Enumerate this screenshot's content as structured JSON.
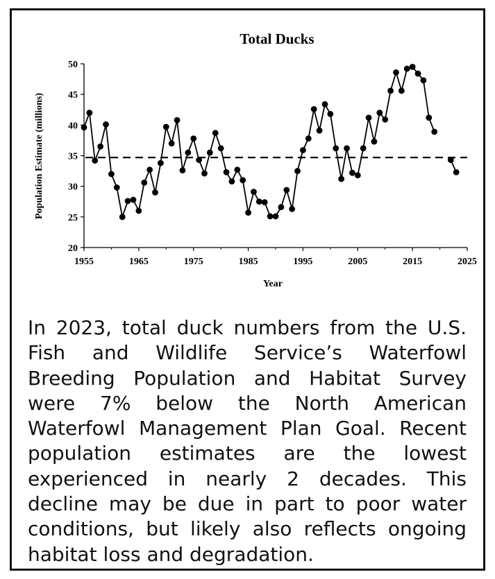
{
  "chart_data": {
    "type": "line",
    "title": "Total Ducks",
    "xlabel": "Year",
    "ylabel": "Population Estimate (millions)",
    "xlim": [
      1955,
      2025
    ],
    "ylim": [
      20,
      50
    ],
    "xticks": [
      1955,
      1965,
      1975,
      1985,
      1995,
      2005,
      2015,
      2025
    ],
    "yticks": [
      20,
      25,
      30,
      35,
      40,
      45,
      50
    ],
    "grid": false,
    "series": [
      {
        "x": [
          1955,
          1956,
          1957,
          1958,
          1959,
          1960,
          1961,
          1962,
          1963,
          1964,
          1965,
          1966,
          1967,
          1968,
          1969,
          1970,
          1971,
          1972,
          1973,
          1974,
          1975,
          1976,
          1977,
          1978,
          1979,
          1980,
          1981,
          1982,
          1983,
          1984,
          1985,
          1986,
          1987,
          1988,
          1989,
          1990,
          1991,
          1992,
          1993,
          1994,
          1995,
          1996,
          1997,
          1998,
          1999,
          2000,
          2001,
          2002,
          2003,
          2004,
          2005,
          2006,
          2007,
          2008,
          2009,
          2010,
          2011,
          2012,
          2013,
          2014,
          2015,
          2016,
          2017,
          2018,
          2019,
          2022,
          2023
        ],
        "y": [
          39.6,
          42.0,
          34.2,
          36.5,
          40.1,
          32.0,
          29.8,
          25.0,
          27.6,
          27.8,
          26.0,
          30.6,
          32.7,
          29.0,
          33.8,
          39.7,
          37.0,
          40.8,
          32.6,
          35.5,
          37.8,
          34.3,
          32.1,
          35.5,
          38.7,
          36.2,
          32.3,
          30.8,
          32.7,
          31.0,
          25.7,
          29.1,
          27.5,
          27.4,
          25.1,
          25.1,
          26.6,
          29.4,
          26.3,
          32.5,
          35.9,
          37.8,
          42.6,
          39.1,
          43.4,
          41.8,
          36.2,
          31.2,
          36.2,
          32.2,
          31.8,
          36.2,
          41.2,
          37.3,
          42.0,
          40.9,
          45.6,
          48.6,
          45.6,
          49.2,
          49.5,
          48.4,
          47.3,
          41.2,
          38.9,
          34.3,
          32.3
        ],
        "segments": [
          [
            1955,
            2019
          ],
          [
            2022,
            2023
          ]
        ]
      }
    ],
    "reference_line": {
      "y": 34.7,
      "style": "dashed"
    }
  },
  "caption": "In 2023, total duck numbers from the U.S. Fish and Wildlife Service’s Waterfowl Breeding Population and Habitat Survey were 7% below the North American Waterfowl Management Plan Goal. Recent population estimates are the lowest experienced in nearly 2 decades. This decline may be due in part to poor water conditions, but likely also reflects ongoing habitat loss and degradation."
}
